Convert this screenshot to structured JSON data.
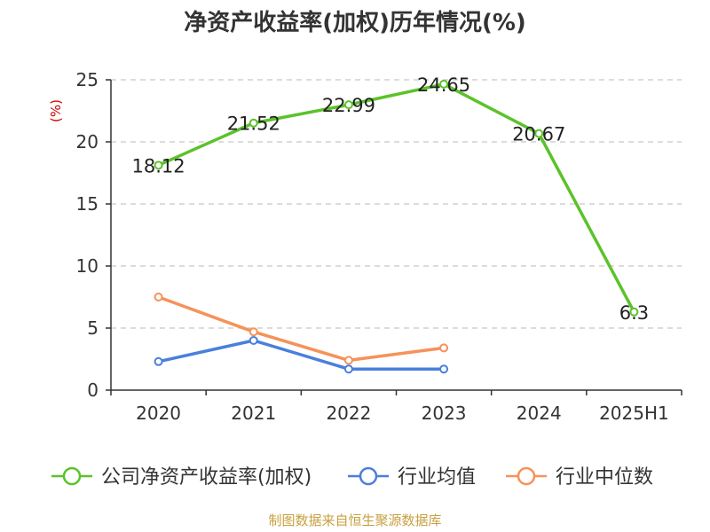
{
  "chart_data": {
    "type": "line",
    "title": "净资产收益率(加权)历年情况(%)",
    "ylabel": "(%)",
    "categories": [
      "2020",
      "2021",
      "2022",
      "2023",
      "2024",
      "2025H1"
    ],
    "ylim": [
      0,
      25
    ],
    "yticks": [
      0,
      5,
      10,
      15,
      20,
      25
    ],
    "grid": true,
    "legend_position": "bottom",
    "series": [
      {
        "name": "公司净资产收益率(加权)",
        "color": "#5cc22a",
        "values": [
          18.12,
          21.52,
          22.99,
          24.65,
          20.67,
          6.3
        ],
        "labels": [
          "18.12",
          "21.52",
          "22.99",
          "24.65",
          "20.67",
          "6.3"
        ]
      },
      {
        "name": "行业均值",
        "color": "#4a7fdc",
        "values": [
          2.3,
          4.0,
          1.7,
          1.7,
          null,
          null
        ]
      },
      {
        "name": "行业中位数",
        "color": "#f5925a",
        "values": [
          7.5,
          4.7,
          2.4,
          3.4,
          null,
          null
        ]
      }
    ]
  },
  "footer": {
    "source": "制图数据来自恒生聚源数据库"
  }
}
